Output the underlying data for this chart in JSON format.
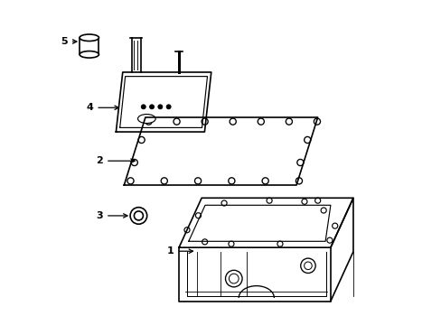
{
  "background_color": "#ffffff",
  "line_color": "#000000",
  "line_width": 1.2
}
